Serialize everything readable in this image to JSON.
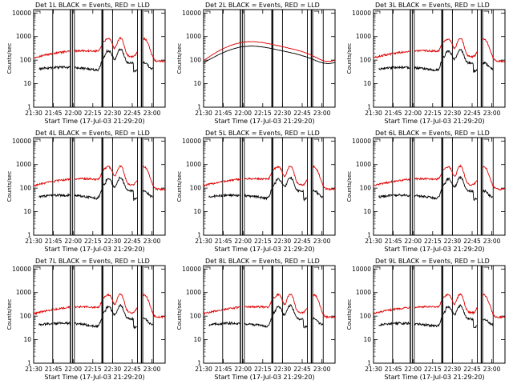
{
  "chart_data": [
    {
      "type": "line",
      "title": "Det 1L BLACK = Events, RED = LLD",
      "xlabel": "Start Time (17-Jul-03 21:29:20)",
      "ylabel": "Counts/sec",
      "xticks": [
        "21:30",
        "21:45",
        "22:00",
        "22:15",
        "22:30",
        "22:45",
        "23:00"
      ],
      "yticks": [
        "1",
        "10",
        "100",
        "1000",
        "10000"
      ],
      "ylim": [
        1,
        14000
      ],
      "series": [
        {
          "name": "Events",
          "color": "#000000"
        },
        {
          "name": "LLD",
          "color": "#dd0000"
        }
      ]
    },
    {
      "type": "line",
      "title": "Det 2L BLACK = Events, RED = LLD",
      "xlabel": "Start Time (17-Jul-03 21:29:20)",
      "ylabel": "Counts/sec",
      "xticks": [
        "21:30",
        "21:45",
        "22:00",
        "22:15",
        "22:30",
        "22:45",
        "23:00"
      ],
      "yticks": [
        "1",
        "10",
        "100",
        "1000",
        "10000"
      ],
      "ylim": [
        1,
        14000
      ],
      "series": [
        {
          "name": "Events",
          "color": "#000000"
        },
        {
          "name": "LLD",
          "color": "#dd0000"
        }
      ]
    },
    {
      "type": "line",
      "title": "Det 3L BLACK = Events, RED = LLD",
      "xlabel": "Start Time (17-Jul-03 21:29:20)",
      "ylabel": "Counts/sec",
      "xticks": [
        "21:30",
        "21:45",
        "22:00",
        "22:15",
        "22:30",
        "22:45",
        "23:00"
      ],
      "yticks": [
        "1",
        "10",
        "100",
        "1000",
        "10000"
      ],
      "ylim": [
        1,
        14000
      ],
      "series": [
        {
          "name": "Events",
          "color": "#000000"
        },
        {
          "name": "LLD",
          "color": "#dd0000"
        }
      ]
    },
    {
      "type": "line",
      "title": "Det 4L BLACK = Events, RED = LLD",
      "xlabel": "Start Time (17-Jul-03 21:29:20)",
      "ylabel": "Counts/sec",
      "xticks": [
        "21:30",
        "21:45",
        "22:00",
        "22:15",
        "22:30",
        "22:45",
        "23:00"
      ],
      "yticks": [
        "1",
        "10",
        "100",
        "1000",
        "10000"
      ],
      "ylim": [
        1,
        14000
      ],
      "series": [
        {
          "name": "Events",
          "color": "#000000"
        },
        {
          "name": "LLD",
          "color": "#dd0000"
        }
      ]
    },
    {
      "type": "line",
      "title": "Det 5L BLACK = Events, RED = LLD",
      "xlabel": "Start Time (17-Jul-03 21:29:20)",
      "ylabel": "Counts/sec",
      "xticks": [
        "21:30",
        "21:45",
        "22:00",
        "22:15",
        "22:30",
        "22:45",
        "23:00"
      ],
      "yticks": [
        "1",
        "10",
        "100",
        "1000",
        "10000"
      ],
      "ylim": [
        1,
        14000
      ],
      "series": [
        {
          "name": "Events",
          "color": "#000000"
        },
        {
          "name": "LLD",
          "color": "#dd0000"
        }
      ]
    },
    {
      "type": "line",
      "title": "Det 6L BLACK = Events, RED = LLD",
      "xlabel": "Start Time (17-Jul-03 21:29:20)",
      "ylabel": "Counts/sec",
      "xticks": [
        "21:30",
        "21:45",
        "22:00",
        "22:15",
        "22:30",
        "22:45",
        "23:00"
      ],
      "yticks": [
        "1",
        "10",
        "100",
        "1000",
        "10000"
      ],
      "ylim": [
        1,
        14000
      ],
      "series": [
        {
          "name": "Events",
          "color": "#000000"
        },
        {
          "name": "LLD",
          "color": "#dd0000"
        }
      ]
    },
    {
      "type": "line",
      "title": "Det 7L BLACK = Events, RED = LLD",
      "xlabel": "Start Time (17-Jul-03 21:29:20)",
      "ylabel": "Counts/sec",
      "xticks": [
        "21:30",
        "21:45",
        "22:00",
        "22:15",
        "22:30",
        "22:45",
        "23:00"
      ],
      "yticks": [
        "1",
        "10",
        "100",
        "1000",
        "10000"
      ],
      "ylim": [
        1,
        14000
      ],
      "series": [
        {
          "name": "Events",
          "color": "#000000"
        },
        {
          "name": "LLD",
          "color": "#dd0000"
        }
      ]
    },
    {
      "type": "line",
      "title": "Det 8L BLACK = Events, RED = LLD",
      "xlabel": "Start Time (17-Jul-03 21:29:20)",
      "ylabel": "Counts/sec",
      "xticks": [
        "21:30",
        "21:45",
        "22:00",
        "22:15",
        "22:30",
        "22:45",
        "23:00"
      ],
      "yticks": [
        "1",
        "10",
        "100",
        "1000",
        "10000"
      ],
      "ylim": [
        1,
        14000
      ],
      "series": [
        {
          "name": "Events",
          "color": "#000000"
        },
        {
          "name": "LLD",
          "color": "#dd0000"
        }
      ]
    },
    {
      "type": "line",
      "title": "Det 9L BLACK = Events, RED = LLD",
      "xlabel": "Start Time (17-Jul-03 21:29:20)",
      "ylabel": "Counts/sec",
      "xticks": [
        "21:30",
        "21:45",
        "22:00",
        "22:15",
        "22:30",
        "22:45",
        "23:00"
      ],
      "yticks": [
        "1",
        "10",
        "100",
        "1000",
        "10000"
      ],
      "ylim": [
        1,
        14000
      ],
      "series": [
        {
          "name": "Events",
          "color": "#000000"
        },
        {
          "name": "LLD",
          "color": "#dd0000"
        }
      ]
    }
  ]
}
